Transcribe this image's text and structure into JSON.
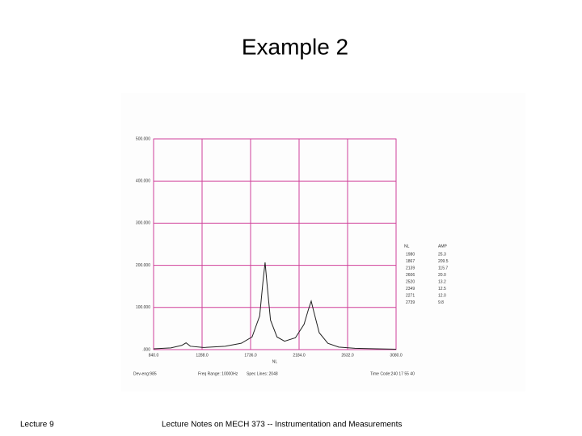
{
  "slide": {
    "title": "Example 2",
    "footer_left": "Lecture 9",
    "footer_center": "Lecture Notes on MECH 373 -- Instrumentation and Measurements"
  },
  "chart_data": {
    "type": "line",
    "x_label": "NL",
    "x": [
      840,
      1000,
      1100,
      1140,
      1180,
      1300,
      1500,
      1650,
      1750,
      1820,
      1850,
      1870,
      1890,
      1920,
      1980,
      2050,
      2150,
      2230,
      2270,
      2296,
      2320,
      2370,
      2450,
      2550,
      2700,
      2900,
      3080
    ],
    "values": [
      2,
      4,
      10,
      16,
      8,
      5,
      8,
      15,
      30,
      80,
      160,
      207,
      150,
      70,
      30,
      20,
      28,
      60,
      95,
      115,
      90,
      40,
      15,
      6,
      3,
      2,
      1
    ],
    "color": "#222222",
    "xlim": [
      840,
      3080
    ],
    "xticks": [
      {
        "value": 840,
        "label": "840.0"
      },
      {
        "value": 1288,
        "label": "1288.0"
      },
      {
        "value": 1736,
        "label": "1736.0"
      },
      {
        "value": 2184,
        "label": "2184.0"
      },
      {
        "value": 2632,
        "label": "2632.0"
      },
      {
        "value": 3080,
        "label": "3080.0"
      }
    ],
    "ylim": [
      0,
      500
    ],
    "yticks": [
      {
        "value": 0,
        "label": ".000"
      },
      {
        "value": 100,
        "label": "100.000"
      },
      {
        "value": 200,
        "label": "200.000"
      },
      {
        "value": 300,
        "label": "300.000"
      },
      {
        "value": 400,
        "label": "400.000"
      },
      {
        "value": 500,
        "label": "500.000"
      }
    ],
    "grid": true,
    "grid_color": "#d0409a",
    "annotations": [
      "Dev-eng:985",
      "Freq Range: 10000Hz",
      "Spec Lines: 2048",
      "Time Code:240 17 55 40"
    ],
    "peak_table": {
      "header": [
        "NL",
        "AMP"
      ],
      "rows": [
        [
          "1980",
          "25.3"
        ],
        [
          "1867",
          "209.5"
        ],
        [
          "2139",
          "115.7"
        ],
        [
          "2606",
          "20.0"
        ],
        [
          "2520",
          "13.2"
        ],
        [
          "2349",
          "12.5"
        ],
        [
          "2271",
          "12.0"
        ],
        [
          "2739",
          "9.8"
        ]
      ]
    }
  }
}
